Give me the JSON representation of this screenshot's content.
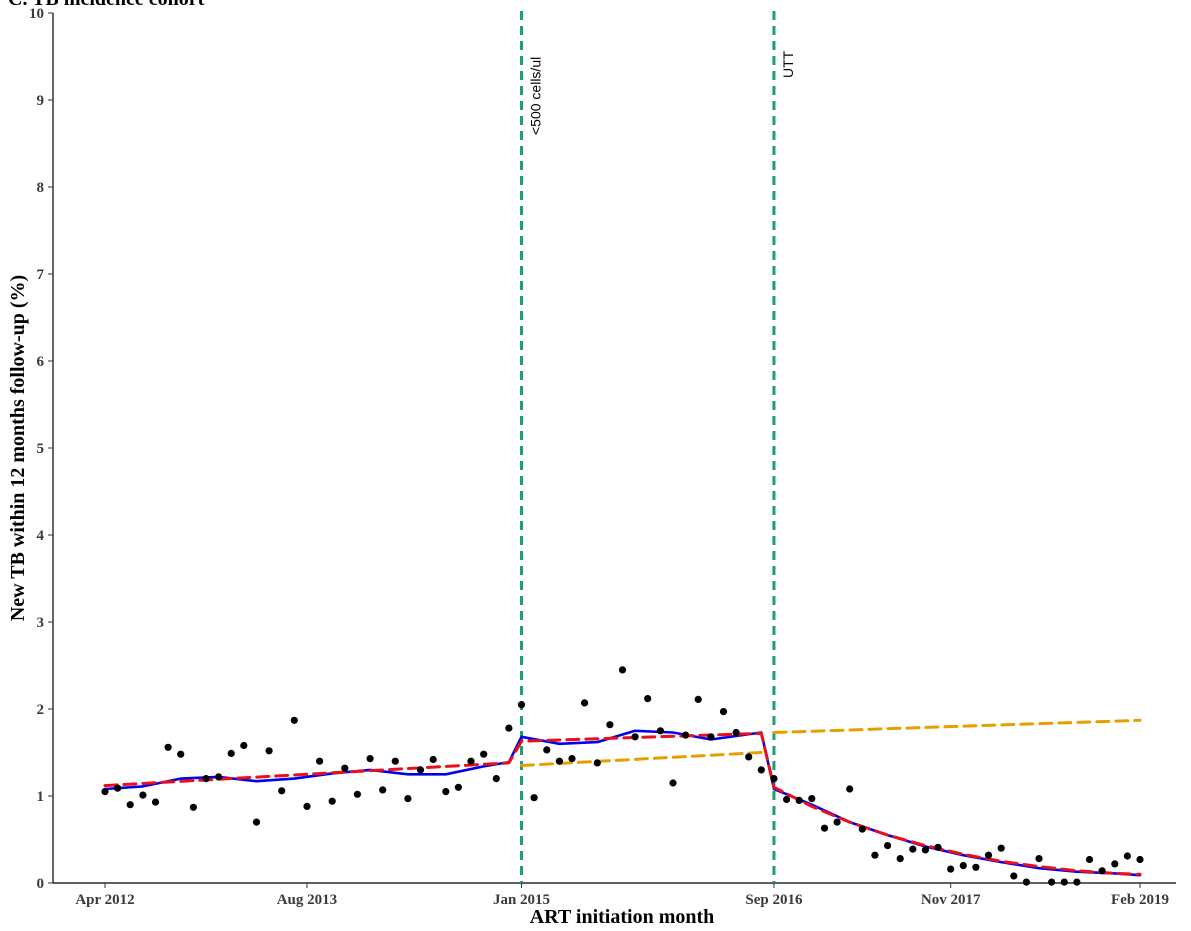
{
  "chart_data": {
    "type": "scatter",
    "title": "C. TB incidence cohort",
    "xlabel": "ART initiation month",
    "ylabel": "New TB within 12 months follow-up (%)",
    "xlim": [
      "2012-03",
      "2019-02"
    ],
    "ylim": [
      0,
      10
    ],
    "x_ticks": [
      "2012-04",
      "2013-08",
      "2015-01",
      "2016-09",
      "2017-11",
      "2019-02"
    ],
    "x_tick_labels": [
      "Apr 2012",
      "Aug 2013",
      "Jan 2015",
      "Sep 2016",
      "Nov 2017",
      "Feb 2019"
    ],
    "y_ticks": [
      0,
      1,
      2,
      3,
      4,
      5,
      6,
      7,
      8,
      9,
      10
    ],
    "grid": false,
    "legend": "none",
    "colors": {
      "points": "#000000",
      "smooth": "#0000ee",
      "fit": "#e8101a",
      "counterfactual": "#e69f00",
      "intervention": "#1b9e77"
    },
    "vertical_lines": [
      {
        "x": "2015-01",
        "label": "<500 cells/ul"
      },
      {
        "x": "2016-09",
        "label": "UTT"
      }
    ],
    "points": [
      {
        "x": "2012-04",
        "y": 1.05
      },
      {
        "x": "2012-05",
        "y": 1.09
      },
      {
        "x": "2012-06",
        "y": 0.9
      },
      {
        "x": "2012-07",
        "y": 1.01
      },
      {
        "x": "2012-08",
        "y": 0.93
      },
      {
        "x": "2012-09",
        "y": 1.56
      },
      {
        "x": "2012-10",
        "y": 1.48
      },
      {
        "x": "2012-11",
        "y": 0.87
      },
      {
        "x": "2012-12",
        "y": 1.2
      },
      {
        "x": "2013-01",
        "y": 1.22
      },
      {
        "x": "2013-02",
        "y": 1.49
      },
      {
        "x": "2013-03",
        "y": 1.58
      },
      {
        "x": "2013-04",
        "y": 0.7
      },
      {
        "x": "2013-05",
        "y": 1.52
      },
      {
        "x": "2013-06",
        "y": 1.06
      },
      {
        "x": "2013-07",
        "y": 1.87
      },
      {
        "x": "2013-08",
        "y": 0.88
      },
      {
        "x": "2013-09",
        "y": 1.4
      },
      {
        "x": "2013-10",
        "y": 0.94
      },
      {
        "x": "2013-11",
        "y": 1.32
      },
      {
        "x": "2013-12",
        "y": 1.02
      },
      {
        "x": "2014-01",
        "y": 1.43
      },
      {
        "x": "2014-02",
        "y": 1.07
      },
      {
        "x": "2014-03",
        "y": 1.4
      },
      {
        "x": "2014-04",
        "y": 0.97
      },
      {
        "x": "2014-05",
        "y": 1.3
      },
      {
        "x": "2014-06",
        "y": 1.42
      },
      {
        "x": "2014-07",
        "y": 1.05
      },
      {
        "x": "2014-08",
        "y": 1.1
      },
      {
        "x": "2014-09",
        "y": 1.4
      },
      {
        "x": "2014-10",
        "y": 1.48
      },
      {
        "x": "2014-11",
        "y": 1.2
      },
      {
        "x": "2014-12",
        "y": 1.78
      },
      {
        "x": "2015-01",
        "y": 2.05
      },
      {
        "x": "2015-02",
        "y": 0.98
      },
      {
        "x": "2015-03",
        "y": 1.53
      },
      {
        "x": "2015-04",
        "y": 1.4
      },
      {
        "x": "2015-05",
        "y": 1.43
      },
      {
        "x": "2015-06",
        "y": 2.07
      },
      {
        "x": "2015-07",
        "y": 1.38
      },
      {
        "x": "2015-08",
        "y": 1.82
      },
      {
        "x": "2015-09",
        "y": 2.45
      },
      {
        "x": "2015-10",
        "y": 1.68
      },
      {
        "x": "2015-11",
        "y": 2.12
      },
      {
        "x": "2015-12",
        "y": 1.75
      },
      {
        "x": "2016-01",
        "y": 1.15
      },
      {
        "x": "2016-02",
        "y": 1.7
      },
      {
        "x": "2016-03",
        "y": 2.11
      },
      {
        "x": "2016-04",
        "y": 1.68
      },
      {
        "x": "2016-05",
        "y": 1.97
      },
      {
        "x": "2016-06",
        "y": 1.73
      },
      {
        "x": "2016-07",
        "y": 1.45
      },
      {
        "x": "2016-08",
        "y": 1.3
      },
      {
        "x": "2016-09",
        "y": 1.2
      },
      {
        "x": "2016-10",
        "y": 0.96
      },
      {
        "x": "2016-11",
        "y": 0.95
      },
      {
        "x": "2016-12",
        "y": 0.97
      },
      {
        "x": "2017-01",
        "y": 0.63
      },
      {
        "x": "2017-02",
        "y": 0.7
      },
      {
        "x": "2017-03",
        "y": 1.08
      },
      {
        "x": "2017-04",
        "y": 0.62
      },
      {
        "x": "2017-05",
        "y": 0.32
      },
      {
        "x": "2017-06",
        "y": 0.43
      },
      {
        "x": "2017-07",
        "y": 0.28
      },
      {
        "x": "2017-08",
        "y": 0.39
      },
      {
        "x": "2017-09",
        "y": 0.38
      },
      {
        "x": "2017-10",
        "y": 0.41
      },
      {
        "x": "2017-11",
        "y": 0.16
      },
      {
        "x": "2017-12",
        "y": 0.2
      },
      {
        "x": "2018-01",
        "y": 0.18
      },
      {
        "x": "2018-02",
        "y": 0.32
      },
      {
        "x": "2018-03",
        "y": 0.4
      },
      {
        "x": "2018-04",
        "y": 0.08
      },
      {
        "x": "2018-05",
        "y": 0.01
      },
      {
        "x": "2018-06",
        "y": 0.28
      },
      {
        "x": "2018-07",
        "y": 0.01
      },
      {
        "x": "2018-08",
        "y": 0.01
      },
      {
        "x": "2018-09",
        "y": 0.01
      },
      {
        "x": "2018-10",
        "y": 0.27
      },
      {
        "x": "2018-11",
        "y": 0.14
      },
      {
        "x": "2018-12",
        "y": 0.22
      },
      {
        "x": "2019-01",
        "y": 0.31
      },
      {
        "x": "2019-02",
        "y": 0.27
      }
    ],
    "series": [
      {
        "type": "line",
        "style": "solid",
        "color": "#0000ee",
        "points": [
          [
            "2012-04",
            1.08
          ],
          [
            "2012-07",
            1.11
          ],
          [
            "2012-10",
            1.2
          ],
          [
            "2013-01",
            1.22
          ],
          [
            "2013-04",
            1.17
          ],
          [
            "2013-07",
            1.2
          ],
          [
            "2013-10",
            1.26
          ],
          [
            "2014-01",
            1.3
          ],
          [
            "2014-04",
            1.25
          ],
          [
            "2014-07",
            1.25
          ],
          [
            "2014-10",
            1.34
          ],
          [
            "2014-12",
            1.39
          ],
          [
            "2015-01",
            1.68
          ],
          [
            "2015-04",
            1.6
          ],
          [
            "2015-07",
            1.62
          ],
          [
            "2015-10",
            1.75
          ],
          [
            "2016-01",
            1.73
          ],
          [
            "2016-04",
            1.65
          ],
          [
            "2016-08",
            1.73
          ],
          [
            "2016-09",
            1.08
          ],
          [
            "2016-12",
            0.9
          ],
          [
            "2017-03",
            0.7
          ],
          [
            "2017-06",
            0.55
          ],
          [
            "2017-09",
            0.42
          ],
          [
            "2017-12",
            0.32
          ],
          [
            "2018-03",
            0.24
          ],
          [
            "2018-06",
            0.17
          ],
          [
            "2018-09",
            0.13
          ],
          [
            "2018-12",
            0.11
          ],
          [
            "2019-02",
            0.09
          ]
        ]
      },
      {
        "type": "line",
        "style": "dashed",
        "color": "#e8101a",
        "points": [
          [
            "2012-04",
            1.12
          ],
          [
            "2014-12",
            1.38
          ],
          [
            "2015-01",
            1.63
          ],
          [
            "2016-08",
            1.72
          ],
          [
            "2016-09",
            1.1
          ],
          [
            "2016-12",
            0.88
          ],
          [
            "2017-03",
            0.7
          ],
          [
            "2017-06",
            0.55
          ],
          [
            "2017-09",
            0.43
          ],
          [
            "2017-12",
            0.33
          ],
          [
            "2018-03",
            0.25
          ],
          [
            "2018-06",
            0.19
          ],
          [
            "2018-09",
            0.14
          ],
          [
            "2018-12",
            0.11
          ],
          [
            "2019-02",
            0.1
          ]
        ]
      },
      {
        "type": "line",
        "style": "dashed",
        "color": "#e69f00",
        "points": [
          [
            "2015-01",
            1.35
          ],
          [
            "2016-08",
            1.5
          ]
        ]
      },
      {
        "type": "line",
        "style": "dashed",
        "color": "#e69f00",
        "points": [
          [
            "2016-09",
            1.73
          ],
          [
            "2019-02",
            1.87
          ]
        ]
      }
    ]
  }
}
